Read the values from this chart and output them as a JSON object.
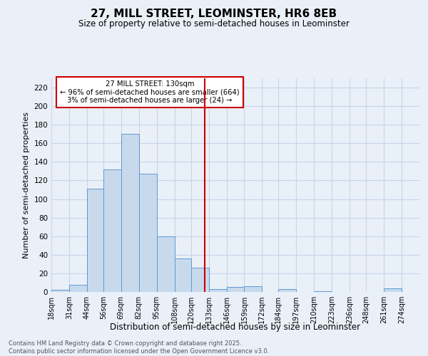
{
  "title": "27, MILL STREET, LEOMINSTER, HR6 8EB",
  "subtitle": "Size of property relative to semi-detached houses in Leominster",
  "xlabel": "Distribution of semi-detached houses by size in Leominster",
  "ylabel": "Number of semi-detached properties",
  "bin_labels": [
    "18sqm",
    "31sqm",
    "44sqm",
    "56sqm",
    "69sqm",
    "82sqm",
    "95sqm",
    "108sqm",
    "120sqm",
    "133sqm",
    "146sqm",
    "159sqm",
    "172sqm",
    "184sqm",
    "197sqm",
    "210sqm",
    "223sqm",
    "236sqm",
    "248sqm",
    "261sqm",
    "274sqm"
  ],
  "bar_heights": [
    2,
    8,
    111,
    132,
    170,
    127,
    60,
    36,
    26,
    3,
    5,
    6,
    0,
    3,
    0,
    1,
    0,
    0,
    0,
    4,
    0
  ],
  "bar_color": "#c9d9ec",
  "bar_edge_color": "#5b9bd5",
  "grid_color": "#c8d4e8",
  "background_color": "#eaf0f8",
  "vline_x": 130,
  "vline_color": "#cc0000",
  "annotation_text": "27 MILL STREET: 130sqm\n← 96% of semi-detached houses are smaller (664)\n3% of semi-detached houses are larger (24) →",
  "annotation_box_color": "#ffffff",
  "annotation_box_edge": "#cc0000",
  "ylim": [
    0,
    230
  ],
  "yticks": [
    0,
    20,
    40,
    60,
    80,
    100,
    120,
    140,
    160,
    180,
    200,
    220
  ],
  "footer_text": "Contains HM Land Registry data © Crown copyright and database right 2025.\nContains public sector information licensed under the Open Government Licence v3.0.",
  "bin_edges": [
    18,
    31,
    44,
    56,
    69,
    82,
    95,
    108,
    120,
    133,
    146,
    159,
    172,
    184,
    197,
    210,
    223,
    236,
    248,
    261,
    274,
    287
  ]
}
